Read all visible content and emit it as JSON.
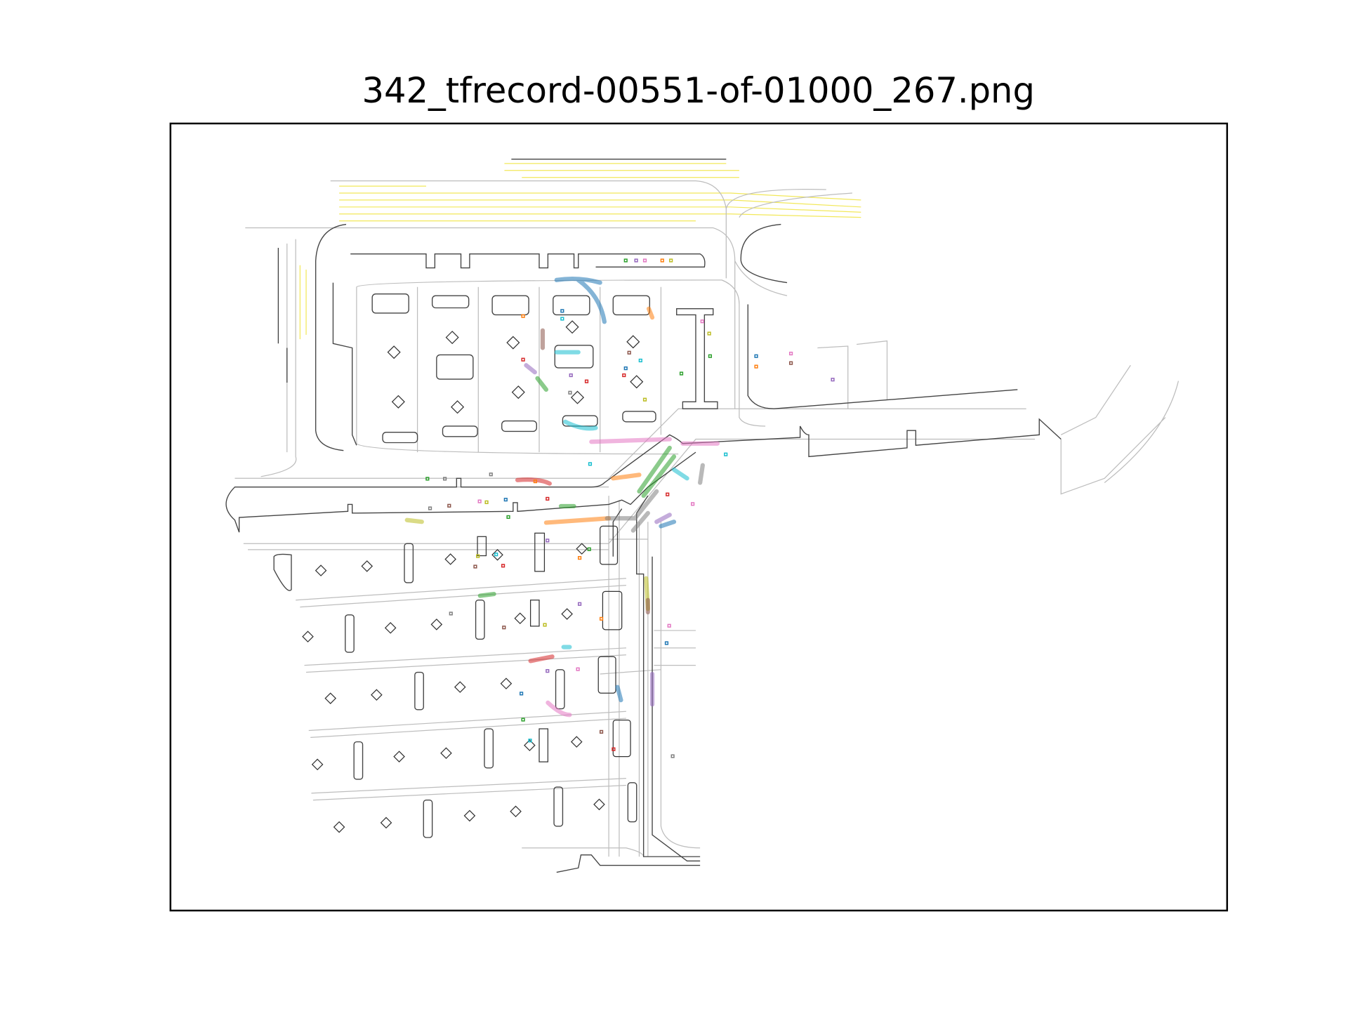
{
  "title": "342_tfrecord-00551-of-01000_267.png"
}
